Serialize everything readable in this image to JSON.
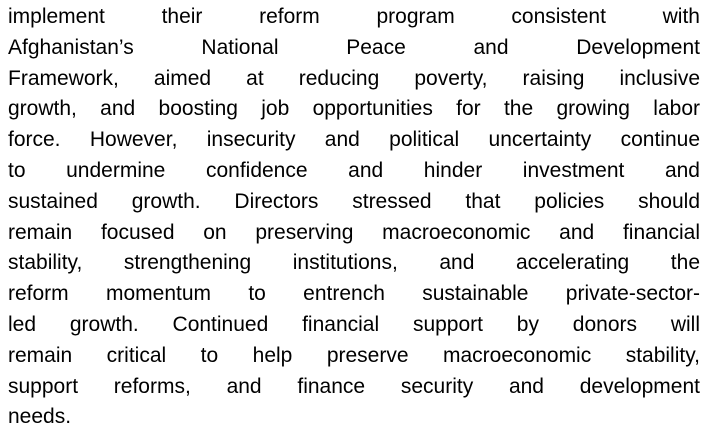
{
  "paragraph": {
    "lines": [
      "implement their reform program consistent with",
      "Afghanistan’s National Peace and Development",
      "Framework, aimed at reducing poverty, raising inclusive",
      "growth, and boosting job opportunities for the growing labor",
      "force. However, insecurity and political uncertainty continue",
      "to undermine confidence and hinder investment and",
      "sustained growth. Directors stressed that policies should",
      "remain focused on preserving macroeconomic and financial",
      "stability, strengthening institutions, and accelerating the",
      "reform momentum to entrench sustainable private-sector-",
      "led growth. Continued financial support by donors will",
      "remain critical to help preserve macroeconomic stability,",
      "support reforms, and finance security and development",
      "needs."
    ]
  }
}
